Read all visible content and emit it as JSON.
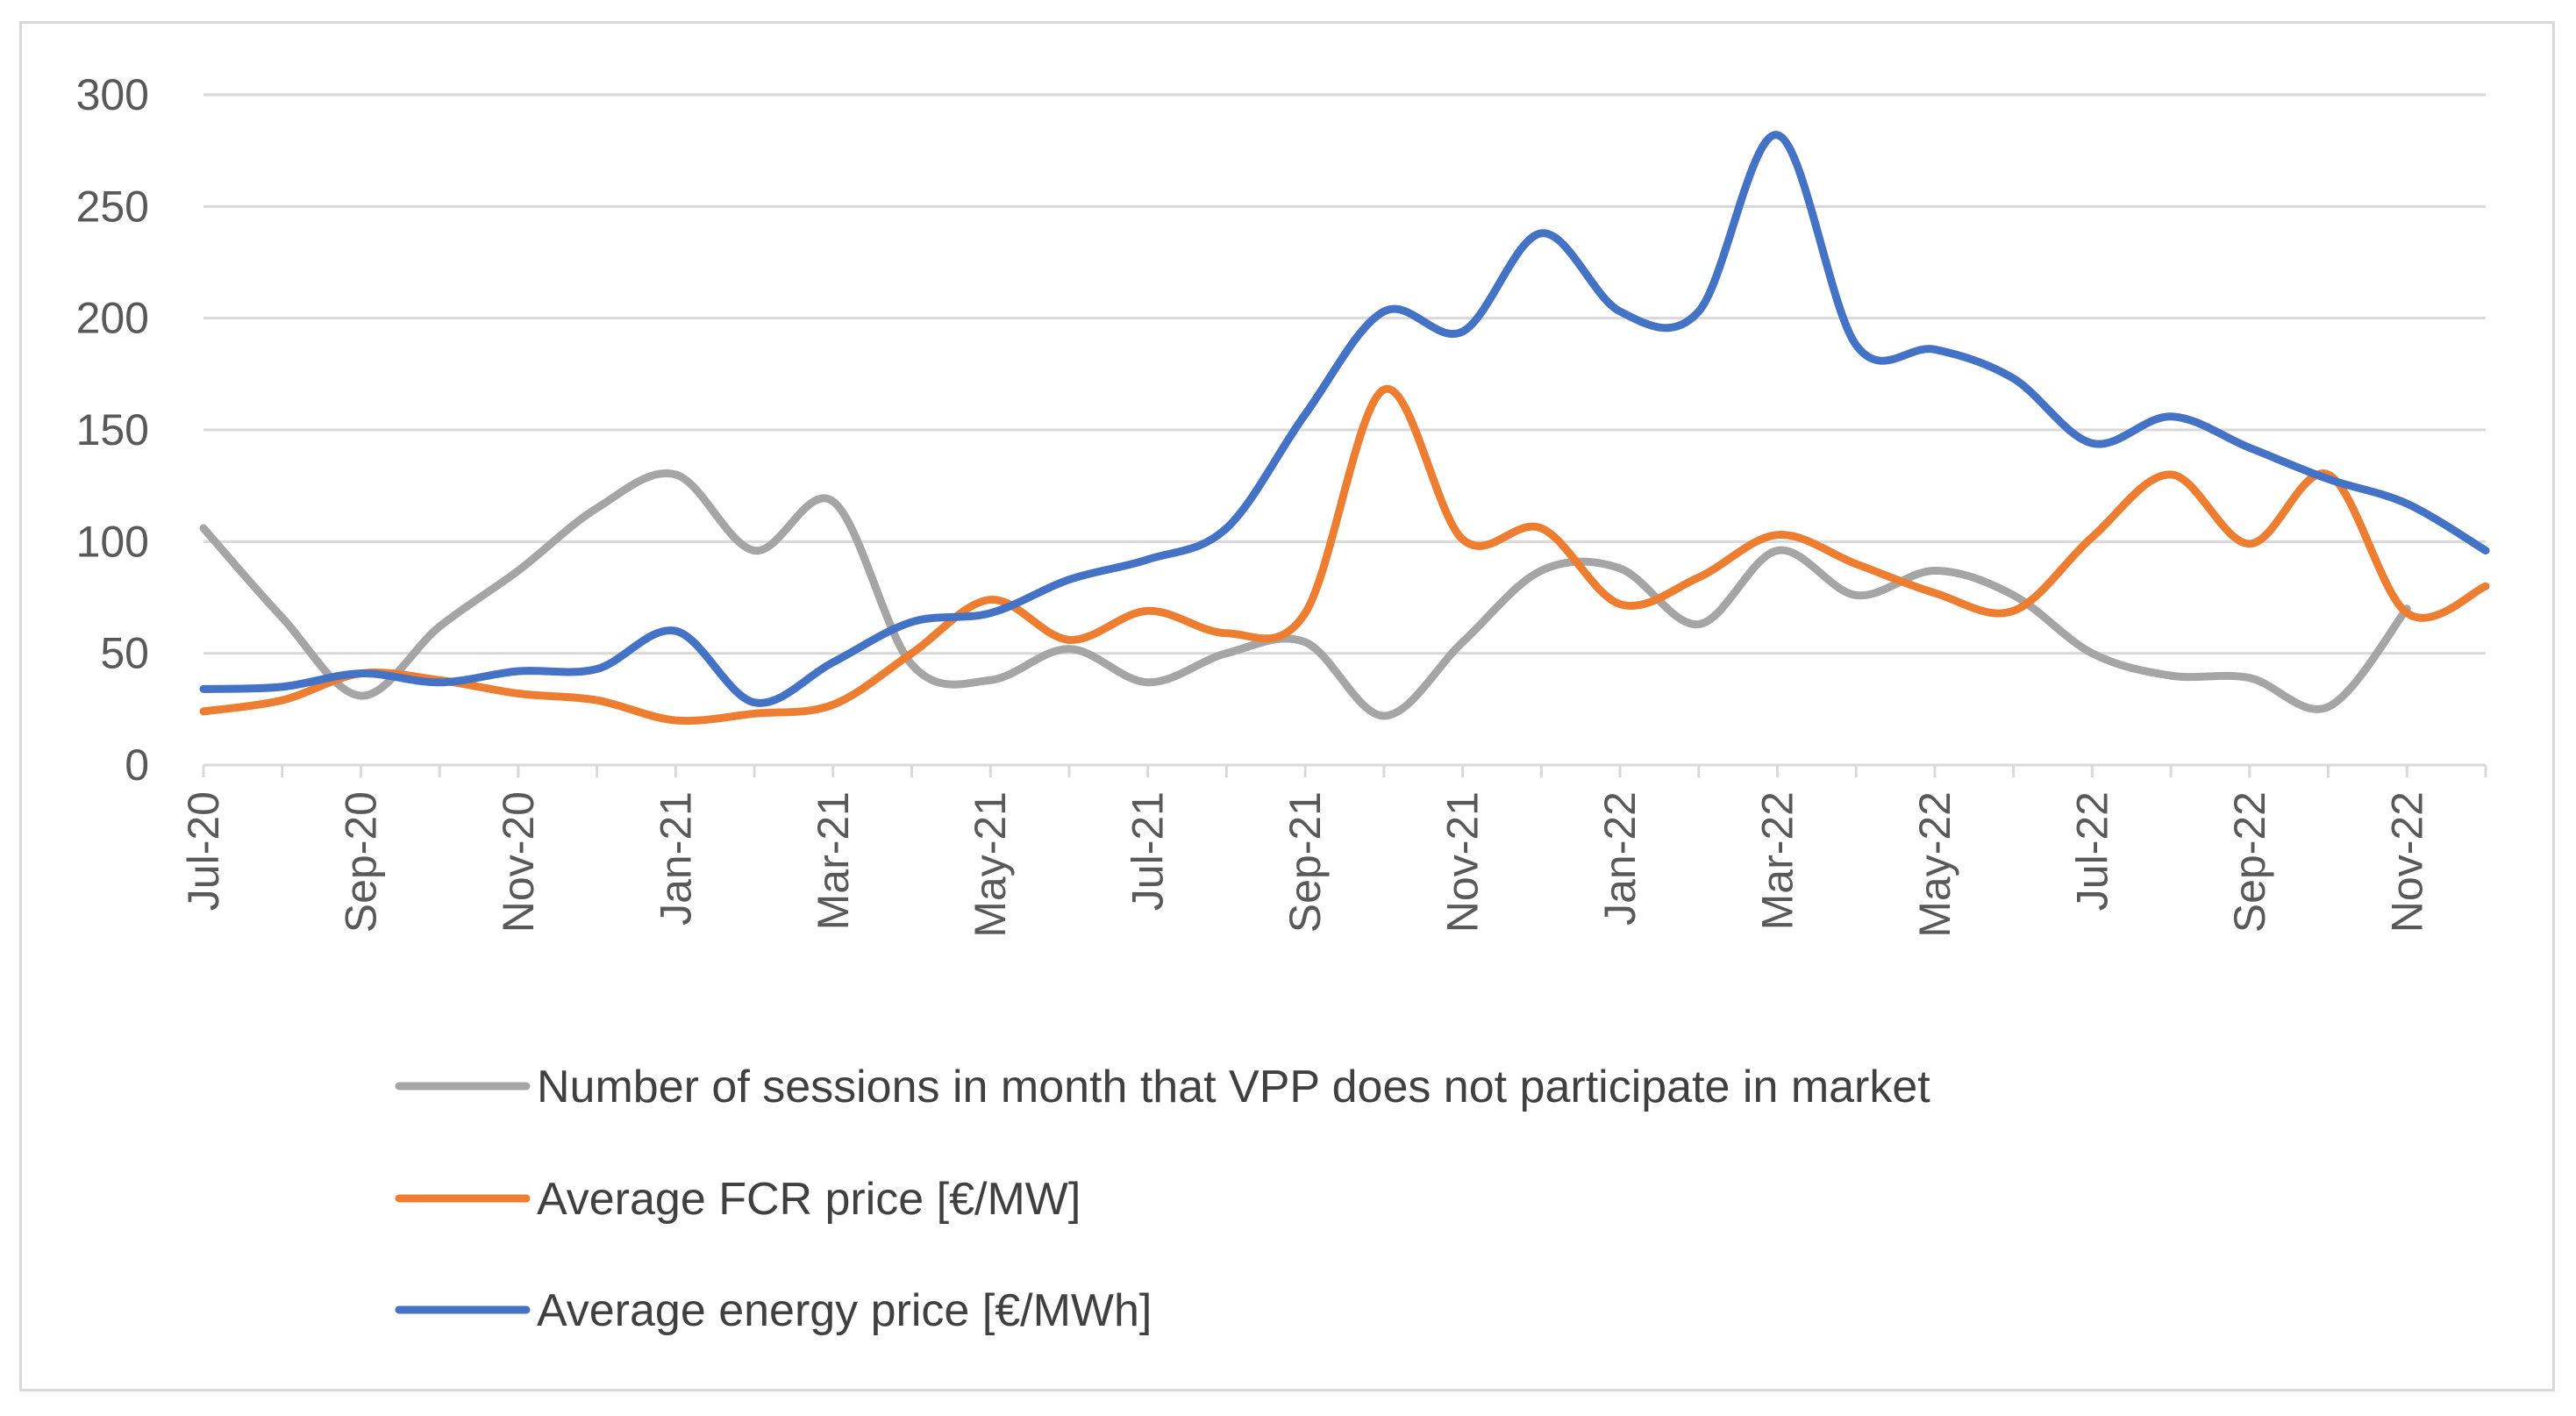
{
  "chart_data": {
    "type": "line",
    "title": "",
    "xlabel": "",
    "ylabel": "",
    "ylim": [
      0,
      300
    ],
    "yticks": [
      0,
      50,
      100,
      150,
      200,
      250,
      300
    ],
    "grid": true,
    "legend_position": "bottom",
    "categories": [
      "Jul-20",
      "Aug-20",
      "Sep-20",
      "Oct-20",
      "Nov-20",
      "Dec-20",
      "Jan-21",
      "Feb-21",
      "Mar-21",
      "Apr-21",
      "May-21",
      "Jun-21",
      "Jul-21",
      "Aug-21",
      "Sep-21",
      "Oct-21",
      "Nov-21",
      "Dec-21",
      "Jan-22",
      "Feb-22",
      "Mar-22",
      "Apr-22",
      "May-22",
      "Jun-22",
      "Jul-22",
      "Aug-22",
      "Sep-22",
      "Oct-22",
      "Nov-22",
      "Dec-22"
    ],
    "tick_labels": [
      "Jul-20",
      "Sep-20",
      "Nov-20",
      "Jan-21",
      "Mar-21",
      "May-21",
      "Jul-21",
      "Sep-21",
      "Nov-21",
      "Jan-22",
      "Mar-22",
      "May-22",
      "Jul-22",
      "Sep-22",
      "Nov-22"
    ],
    "series": [
      {
        "name": "Number of sessions in month that VPP does not participate in market",
        "color": "#a5a5a5",
        "values": [
          106,
          66,
          31,
          62,
          87,
          115,
          130,
          96,
          118,
          45,
          38,
          52,
          37,
          50,
          55,
          22,
          55,
          87,
          88,
          63,
          96,
          76,
          87,
          76,
          50,
          40,
          39,
          26,
          70,
          null
        ]
      },
      {
        "name": "Average FCR price [€/MW]",
        "color": "#ed7d31",
        "values": [
          24,
          29,
          41,
          38,
          32,
          29,
          20,
          23,
          27,
          50,
          74,
          56,
          69,
          59,
          68,
          168,
          101,
          106,
          72,
          84,
          103,
          90,
          77,
          69,
          102,
          130,
          99,
          130,
          68,
          80
        ]
      },
      {
        "name": "Average energy price [€/MWh]",
        "color": "#4472c4",
        "values": [
          34,
          35,
          41,
          37,
          42,
          43,
          60,
          28,
          46,
          64,
          68,
          83,
          92,
          106,
          157,
          203,
          194,
          238,
          203,
          203,
          282,
          188,
          186,
          173,
          144,
          156,
          142,
          128,
          117,
          96
        ]
      }
    ]
  }
}
